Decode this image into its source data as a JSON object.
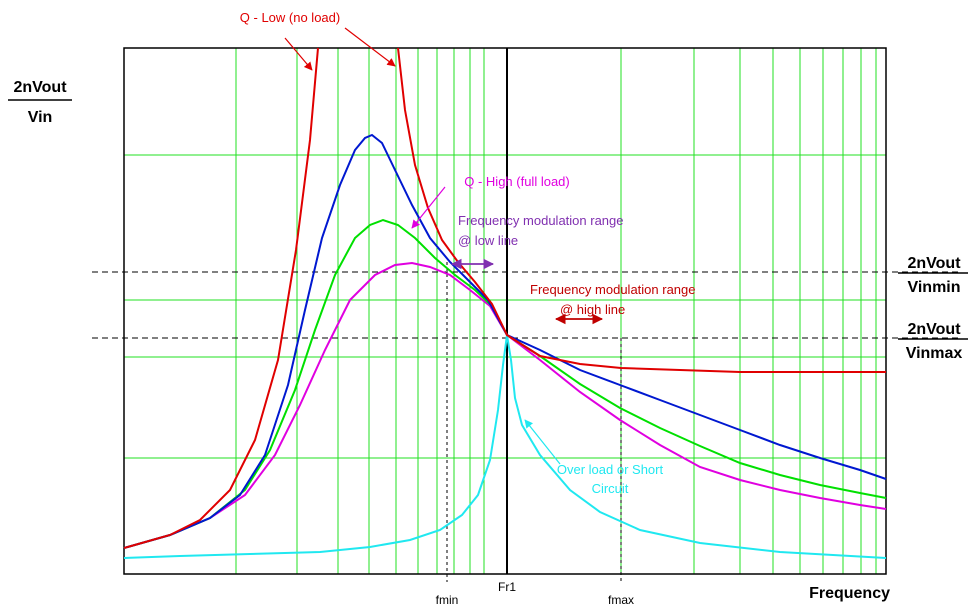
{
  "diagram": {
    "y_axis_label": {
      "numerator": "2nVout",
      "denominator": "Vin"
    },
    "x_axis_label": "Frequency",
    "vinmin_label": {
      "numerator": "2nVout",
      "denominator": "Vinmin"
    },
    "vinmax_label": {
      "numerator": "2nVout",
      "denominator": "Vinmax"
    },
    "fmin_label": "fmin",
    "fr1_label": "Fr1",
    "fmax_label": "fmax",
    "q_low_label": "Q - Low (no load)",
    "q_high_label": "Q - High (full load)",
    "low_line_range_label": [
      "Frequency modulation range",
      "@ low line"
    ],
    "high_line_range_label": [
      "Frequency modulation range",
      "@ high line"
    ],
    "overload_label": [
      "Over load or Short",
      "Circuit"
    ]
  },
  "colors": {
    "q_low": "#e00000",
    "mid_load": "#0018d0",
    "light_load": "#00e000",
    "full_load": "#e000e0",
    "overload": "#20e8f0",
    "low_line_annotation": "#8030b0",
    "high_line_annotation": "#c00000",
    "grid": "#20e020"
  }
}
